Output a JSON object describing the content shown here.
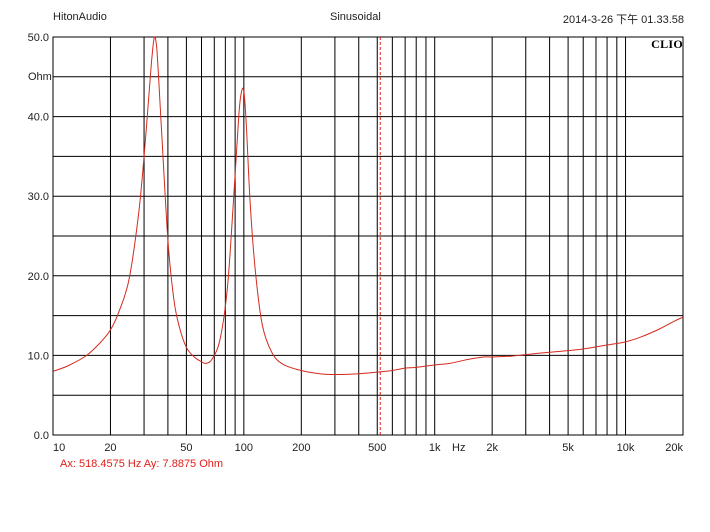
{
  "header": {
    "app": "HitonAudio",
    "mode": "Sinusoidal",
    "timestamp": "2014-3-26 下午 01.33.58",
    "brand": "CLIO"
  },
  "cursor": {
    "readout": "Ax: 518.4575 Hz   Ay: 7.8875 Ohm",
    "x": 518.4575,
    "y": 7.8875,
    "color": "#e0201a"
  },
  "chart_data": {
    "type": "line",
    "title": "",
    "xlabel": "Hz",
    "ylabel": "Ohm",
    "x_scale": "log",
    "xlim": [
      10,
      20000
    ],
    "ylim": [
      0,
      50
    ],
    "grid": true,
    "x_tick_labels": [
      {
        "v": 10,
        "t": "10"
      },
      {
        "v": 20,
        "t": "20"
      },
      {
        "v": 50,
        "t": "50"
      },
      {
        "v": 100,
        "t": "100"
      },
      {
        "v": 200,
        "t": "200"
      },
      {
        "v": 500,
        "t": "500"
      },
      {
        "v": 1000,
        "t": "1k"
      },
      {
        "v": 2000,
        "t": "2k"
      },
      {
        "v": 5000,
        "t": "5k"
      },
      {
        "v": 10000,
        "t": "10k"
      },
      {
        "v": 20000,
        "t": "20k"
      }
    ],
    "y_tick_labels": [
      {
        "v": 0,
        "t": "0.0"
      },
      {
        "v": 10,
        "t": "10.0"
      },
      {
        "v": 20,
        "t": "20.0"
      },
      {
        "v": 30,
        "t": "30.0"
      },
      {
        "v": 40,
        "t": "40.0"
      },
      {
        "v": 50,
        "t": "50.0"
      }
    ],
    "series": [
      {
        "color": "#d42a1e",
        "points": [
          [
            10,
            8.0
          ],
          [
            12,
            8.7
          ],
          [
            15,
            10.0
          ],
          [
            18,
            11.8
          ],
          [
            20,
            13.2
          ],
          [
            22,
            15.3
          ],
          [
            25,
            19.5
          ],
          [
            28,
            27.5
          ],
          [
            30,
            35.0
          ],
          [
            32,
            43.5
          ],
          [
            33,
            47.5
          ],
          [
            34,
            50.0
          ],
          [
            35,
            48.5
          ],
          [
            37,
            38.5
          ],
          [
            40,
            24.5
          ],
          [
            43,
            17.0
          ],
          [
            46,
            13.5
          ],
          [
            50,
            11.0
          ],
          [
            55,
            9.8
          ],
          [
            60,
            9.2
          ],
          [
            63,
            9.0
          ],
          [
            68,
            9.5
          ],
          [
            75,
            12.0
          ],
          [
            82,
            18.5
          ],
          [
            88,
            29.0
          ],
          [
            94,
            40.0
          ],
          [
            97,
            43.0
          ],
          [
            100,
            43.2
          ],
          [
            103,
            39.0
          ],
          [
            108,
            29.0
          ],
          [
            115,
            20.5
          ],
          [
            125,
            13.8
          ],
          [
            140,
            10.4
          ],
          [
            160,
            8.9
          ],
          [
            200,
            8.1
          ],
          [
            250,
            7.7
          ],
          [
            300,
            7.6
          ],
          [
            400,
            7.7
          ],
          [
            500,
            7.9
          ],
          [
            600,
            8.1
          ],
          [
            700,
            8.4
          ],
          [
            800,
            8.5
          ],
          [
            1000,
            8.8
          ],
          [
            1200,
            9.0
          ],
          [
            1500,
            9.5
          ],
          [
            1800,
            9.8
          ],
          [
            2000,
            9.8
          ],
          [
            2500,
            9.9
          ],
          [
            3000,
            10.1
          ],
          [
            4000,
            10.4
          ],
          [
            5000,
            10.6
          ],
          [
            6000,
            10.8
          ],
          [
            8000,
            11.3
          ],
          [
            10000,
            11.7
          ],
          [
            12000,
            12.3
          ],
          [
            15000,
            13.3
          ],
          [
            18000,
            14.3
          ],
          [
            20000,
            14.8
          ]
        ]
      }
    ]
  }
}
